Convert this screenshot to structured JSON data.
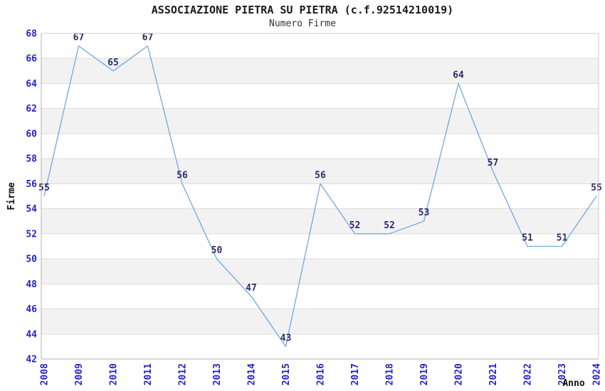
{
  "chart_data": {
    "type": "line",
    "title": "ASSOCIAZIONE PIETRA SU PIETRA (c.f.92514210019)",
    "subtitle": "Numero Firme",
    "xlabel": "Anno",
    "ylabel": "Firme",
    "categories": [
      "2008",
      "2009",
      "2010",
      "2011",
      "2012",
      "2013",
      "2014",
      "2015",
      "2016",
      "2017",
      "2018",
      "2019",
      "2020",
      "2021",
      "2022",
      "2023",
      "2024"
    ],
    "values": [
      55,
      67,
      65,
      67,
      56,
      50,
      47,
      43,
      56,
      52,
      52,
      53,
      64,
      57,
      51,
      51,
      55
    ],
    "ylim": [
      42,
      68
    ],
    "ytick_step": 2,
    "yticks": [
      42,
      44,
      46,
      48,
      50,
      52,
      54,
      56,
      58,
      60,
      62,
      64,
      66,
      68
    ],
    "legend": "none",
    "grid": "horizontal alternating bands every 2 units",
    "data_labels_shown": true,
    "colors": {
      "line": "#6fa8e3",
      "tick_label": "#2323c8",
      "data_label": "#2c2c6e",
      "band_gray": "#f2f2f2",
      "grid_line": "#dcdcdc",
      "axis_line": "#b0b0b0",
      "border_line": "#cccccc",
      "title": "#1a1a1a",
      "subtitle": "#333333"
    }
  }
}
